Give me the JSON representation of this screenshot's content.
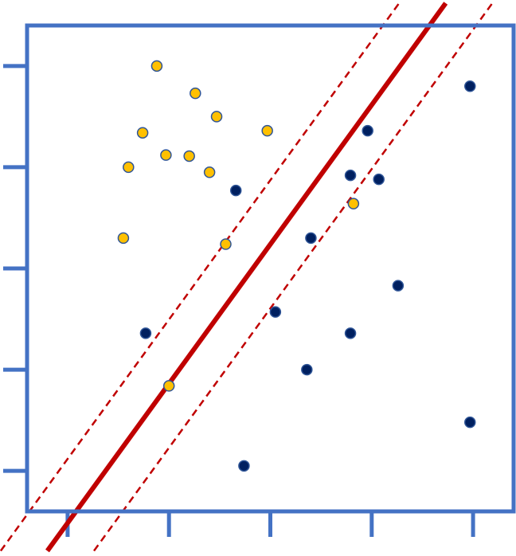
{
  "chart_data": {
    "type": "scatter",
    "title": "",
    "xlabel": "",
    "ylabel": "",
    "xlim": [
      -0.4,
      4.4
    ],
    "ylim": [
      -0.4,
      4.4
    ],
    "xticks": [
      0,
      1,
      2,
      3,
      4
    ],
    "yticks": [
      0,
      1,
      2,
      3,
      4
    ],
    "tick_labels_shown": false,
    "grid": false,
    "legend": "none",
    "colors": {
      "frame": "#4472C4",
      "class_a": "#FFC000",
      "class_b": "#002060",
      "point_edge": "#2F5597",
      "boundary": "#C00000"
    },
    "series": [
      {
        "color_key": "class_a",
        "points": [
          [
            0.88,
            4.0
          ],
          [
            1.26,
            3.73
          ],
          [
            1.47,
            3.5
          ],
          [
            0.74,
            3.34
          ],
          [
            0.97,
            3.12
          ],
          [
            1.2,
            3.11
          ],
          [
            0.6,
            3.0
          ],
          [
            1.4,
            2.95
          ],
          [
            1.97,
            3.36
          ],
          [
            2.82,
            2.64
          ],
          [
            0.55,
            2.3
          ],
          [
            1.56,
            2.24
          ],
          [
            1.0,
            0.84
          ]
        ]
      },
      {
        "color_key": "class_b",
        "points": [
          [
            3.97,
            3.8
          ],
          [
            2.96,
            3.36
          ],
          [
            2.79,
            2.92
          ],
          [
            3.07,
            2.88
          ],
          [
            1.66,
            2.77
          ],
          [
            2.4,
            2.3
          ],
          [
            3.26,
            1.83
          ],
          [
            2.05,
            1.57
          ],
          [
            2.79,
            1.36
          ],
          [
            0.77,
            1.36
          ],
          [
            2.36,
            1.0
          ],
          [
            3.97,
            0.48
          ],
          [
            1.74,
            0.05
          ]
        ]
      }
    ],
    "lines": [
      {
        "style": "solid",
        "color_key": "boundary",
        "x1": -0.2,
        "y1": -0.79,
        "x2": 3.73,
        "y2": 4.62
      },
      {
        "style": "dashed",
        "color_key": "boundary",
        "x1": -0.66,
        "y1": -0.79,
        "x2": 3.27,
        "y2": 4.62
      },
      {
        "style": "dashed",
        "color_key": "boundary",
        "x1": 0.26,
        "y1": -0.79,
        "x2": 4.19,
        "y2": 4.62
      }
    ]
  }
}
